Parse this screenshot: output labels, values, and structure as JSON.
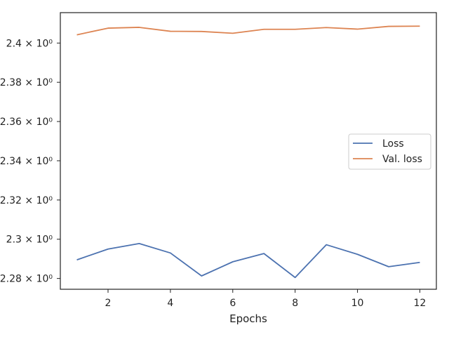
{
  "chart_data": {
    "type": "line",
    "title": "",
    "xlabel": "Epochs",
    "ylabel": "",
    "xlim": [
      0.47,
      12.53
    ],
    "ylim": [
      2.2745,
      2.4155
    ],
    "x_ticks": [
      2,
      4,
      6,
      8,
      10,
      12
    ],
    "y_ticks": [
      {
        "value": 2.28,
        "label": "2.28 × 10⁰"
      },
      {
        "value": 2.3,
        "label": "2.3 × 10⁰"
      },
      {
        "value": 2.32,
        "label": "2.32 × 10⁰"
      },
      {
        "value": 2.34,
        "label": "2.34 × 10⁰"
      },
      {
        "value": 2.36,
        "label": "2.36 × 10⁰"
      },
      {
        "value": 2.38,
        "label": "2.38 × 10⁰"
      },
      {
        "value": 2.4,
        "label": "2.4 × 10⁰"
      }
    ],
    "grid": false,
    "legend_position": "center-right",
    "x": [
      1,
      2,
      3,
      4,
      5,
      6,
      7,
      8,
      9,
      10,
      11,
      12
    ],
    "series": [
      {
        "name": "Loss",
        "color": "#4c72b0",
        "values": [
          2.2895,
          2.295,
          2.2978,
          2.293,
          2.2813,
          2.2885,
          2.2927,
          2.2805,
          2.2972,
          2.2923,
          2.286,
          2.2882
        ]
      },
      {
        "name": "Val. loss",
        "color": "#dd8452",
        "values": [
          2.4042,
          2.4076,
          2.408,
          2.406,
          2.4059,
          2.405,
          2.407,
          2.407,
          2.4079,
          2.4071,
          2.4085,
          2.4086
        ]
      }
    ]
  }
}
